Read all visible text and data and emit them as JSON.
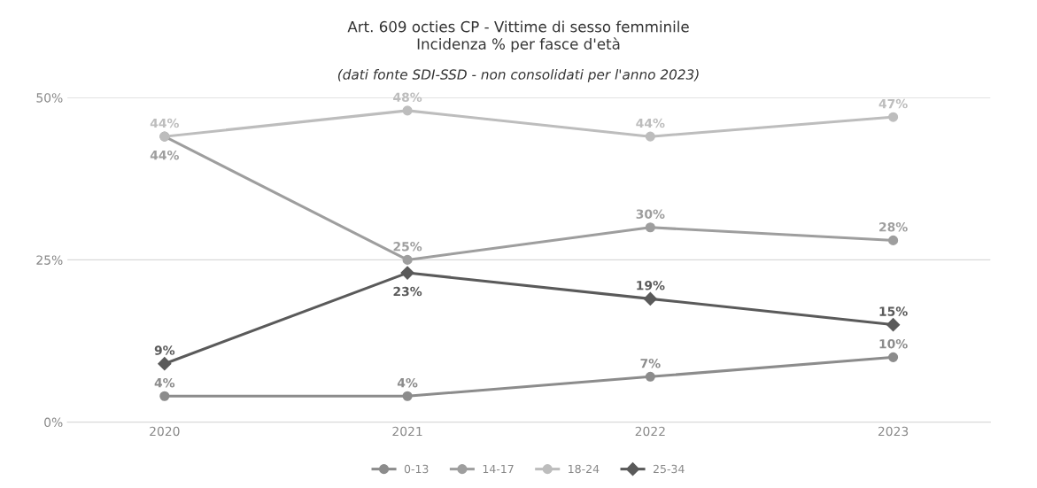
{
  "chart_data": {
    "type": "line",
    "title": "Art. 609 octies CP - Vittime di sesso femminile\nIncidenza % per fasce d'età",
    "subtitle": "(dati fonte SDI-SSD - non consolidati per l'anno 2023)",
    "categories": [
      "2020",
      "2021",
      "2022",
      "2023"
    ],
    "series": [
      {
        "name": "0-13",
        "color": "#8c8c8c",
        "marker": "circle",
        "values": [
          4,
          4,
          7,
          10
        ],
        "value_labels": [
          "4%",
          "4%",
          "7%",
          "10%"
        ]
      },
      {
        "name": "14-17",
        "color": "#9e9e9e",
        "marker": "circle",
        "values": [
          44,
          25,
          30,
          28
        ],
        "value_labels": [
          "44%",
          "25%",
          "30%",
          "28%"
        ]
      },
      {
        "name": "18-24",
        "color": "#bdbdbd",
        "marker": "circle",
        "values": [
          44,
          48,
          44,
          47
        ],
        "value_labels": [
          "44%",
          "48%",
          "44%",
          "47%"
        ]
      },
      {
        "name": "25-34",
        "color": "#5a5a5a",
        "marker": "diamond",
        "values": [
          9,
          23,
          19,
          15
        ],
        "value_labels": [
          "9%",
          "23%",
          "19%",
          "15%"
        ]
      }
    ],
    "ylim": [
      0,
      50
    ],
    "yticks": [
      {
        "value": 0,
        "label": "0%"
      },
      {
        "value": 25,
        "label": "25%"
      },
      {
        "value": 50,
        "label": "50%"
      }
    ],
    "grid": "y",
    "legend": "bottom",
    "line_style": "solid"
  }
}
